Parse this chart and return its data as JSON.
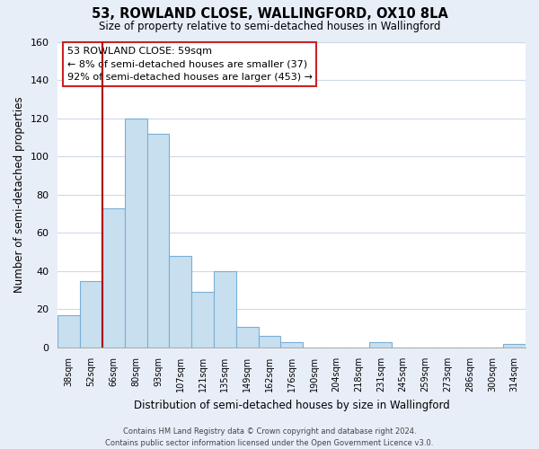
{
  "title": "53, ROWLAND CLOSE, WALLINGFORD, OX10 8LA",
  "subtitle": "Size of property relative to semi-detached houses in Wallingford",
  "xlabel": "Distribution of semi-detached houses by size in Wallingford",
  "ylabel": "Number of semi-detached properties",
  "categories": [
    "38sqm",
    "52sqm",
    "66sqm",
    "80sqm",
    "93sqm",
    "107sqm",
    "121sqm",
    "135sqm",
    "149sqm",
    "162sqm",
    "176sqm",
    "190sqm",
    "204sqm",
    "218sqm",
    "231sqm",
    "245sqm",
    "259sqm",
    "273sqm",
    "286sqm",
    "300sqm",
    "314sqm"
  ],
  "values": [
    17,
    35,
    73,
    120,
    112,
    48,
    29,
    40,
    11,
    6,
    3,
    0,
    0,
    0,
    3,
    0,
    0,
    0,
    0,
    0,
    2
  ],
  "bar_color": "#c8dff0",
  "bar_edge_color": "#7aafd4",
  "highlight_line_color": "#aa0000",
  "ylim": [
    0,
    160
  ],
  "yticks": [
    0,
    20,
    40,
    60,
    80,
    100,
    120,
    140,
    160
  ],
  "annotation_title": "53 ROWLAND CLOSE: 59sqm",
  "annotation_line1": "← 8% of semi-detached houses are smaller (37)",
  "annotation_line2": "92% of semi-detached houses are larger (453) →",
  "footer_line1": "Contains HM Land Registry data © Crown copyright and database right 2024.",
  "footer_line2": "Contains public sector information licensed under the Open Government Licence v3.0.",
  "bg_color": "#e8eef8",
  "plot_bg_color": "#ffffff",
  "grid_color": "#d0d8e8"
}
